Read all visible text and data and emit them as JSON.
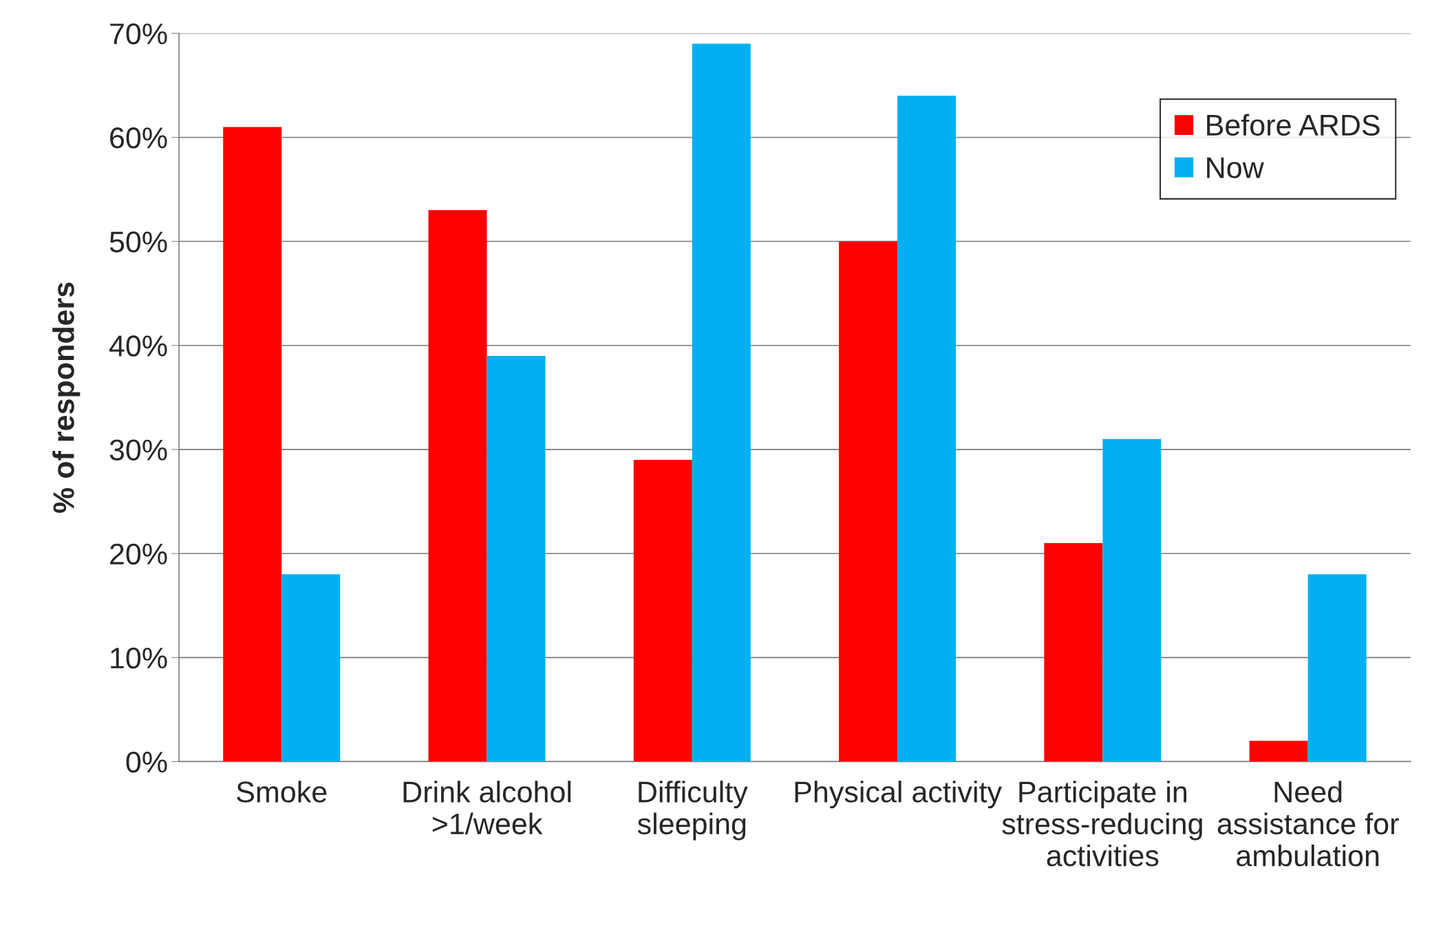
{
  "chart_data": {
    "type": "bar",
    "ylabel": "% of responders",
    "categories": [
      "Smoke",
      "Drink alcohol\n>1/week",
      "Difficulty\nsleeping",
      "Physical activity",
      "Participate in\nstress-reducing\nactivities",
      "Need\nassistance for\nambulation"
    ],
    "series": [
      {
        "name": "Before ARDS",
        "color": "#ff0000",
        "values": [
          61,
          53,
          29,
          50,
          21,
          2
        ]
      },
      {
        "name": "Now",
        "color": "#00b0f0",
        "values": [
          18,
          39,
          69,
          64,
          31,
          18
        ]
      }
    ],
    "ylim": [
      0,
      70
    ],
    "yticks": [
      {
        "value": 0,
        "label": "0%"
      },
      {
        "value": 10,
        "label": "10%"
      },
      {
        "value": 20,
        "label": "20%"
      },
      {
        "value": 30,
        "label": "30%"
      },
      {
        "value": 40,
        "label": "40%"
      },
      {
        "value": 50,
        "label": "50%"
      },
      {
        "value": 60,
        "label": "60%"
      },
      {
        "value": 70,
        "label": "70%"
      }
    ],
    "grid": "y",
    "legend": "top right"
  }
}
